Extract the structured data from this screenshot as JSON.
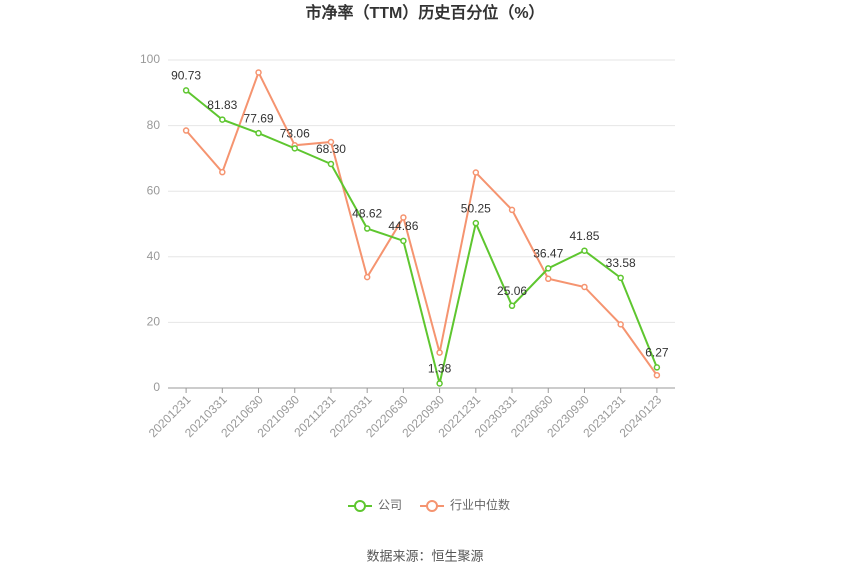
{
  "chart_data": {
    "type": "line",
    "title": "市净率（TTM）历史百分位（%）",
    "source": "数据来源：恒生聚源",
    "categories": [
      "20201231",
      "20210331",
      "20210630",
      "20210930",
      "20211231",
      "20220331",
      "20220630",
      "20220930",
      "20221231",
      "20230331",
      "20230630",
      "20230930",
      "20231231",
      "20240123"
    ],
    "series": [
      {
        "name": "公司",
        "color": "#5ec62f",
        "values": [
          90.73,
          81.83,
          77.69,
          73.06,
          68.3,
          48.62,
          44.86,
          1.38,
          50.25,
          25.06,
          36.47,
          41.85,
          33.58,
          6.27
        ],
        "value_labels": [
          "90.73",
          "81.83",
          "77.69",
          "73.06",
          "68.30",
          "48.62",
          "44.86",
          "1.38",
          "50.25",
          "25.06",
          "36.47",
          "41.85",
          "33.58",
          "6.27"
        ]
      },
      {
        "name": "行业中位数",
        "color": "#f59470",
        "values": [
          78.5,
          65.8,
          96.2,
          74,
          75,
          33.8,
          52,
          10.8,
          65.7,
          54.3,
          33.3,
          30.8,
          19.4,
          3.9
        ]
      }
    ],
    "ylim": [
      0,
      100
    ],
    "yticks": [
      0,
      20,
      40,
      60,
      80,
      100
    ],
    "grid": true
  }
}
